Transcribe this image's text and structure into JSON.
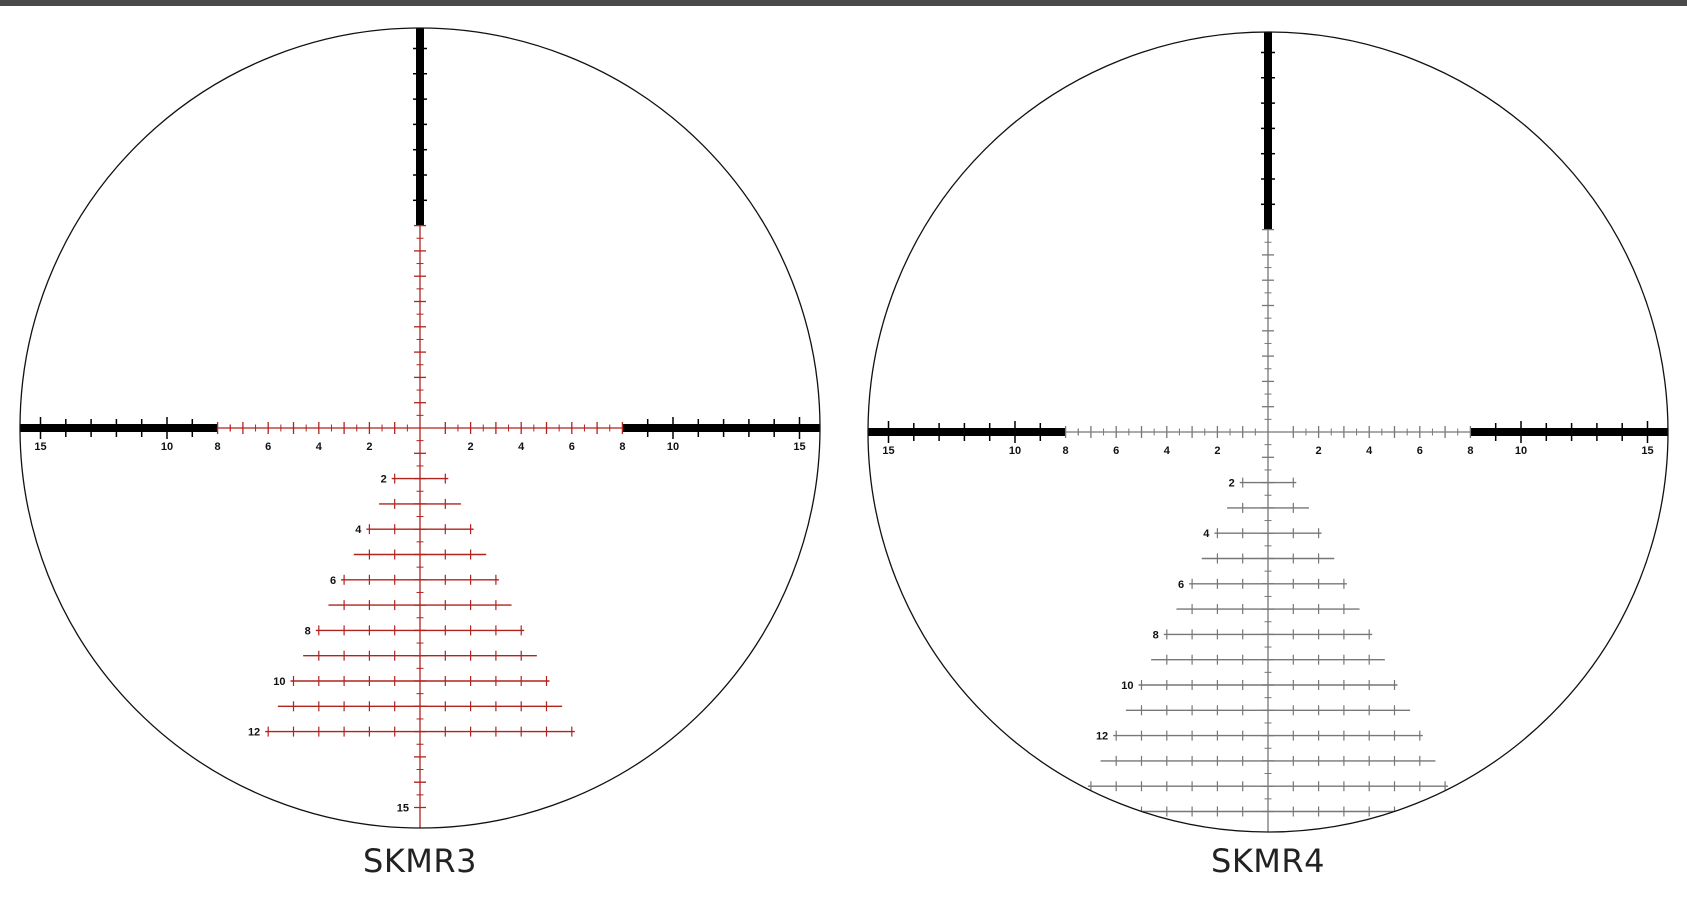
{
  "colors": {
    "background": "#ffffff",
    "top_bar": "#4a4a4a",
    "outline": "#111111",
    "thick_post": "#000000",
    "skmr3_fine": "#b0231f",
    "skmr4_fine": "#777777",
    "label": "#111111"
  },
  "reticles": [
    {
      "id": "skmr3",
      "name": "SKMR3",
      "fine_color": "skmr3_fine",
      "horizontal_labels": [
        "15",
        "10",
        "8",
        "6",
        "4",
        "2",
        "2",
        "4",
        "6",
        "8",
        "10",
        "15"
      ],
      "horizontal_label_values": [
        -15,
        -10,
        -8,
        -6,
        -4,
        -2,
        2,
        4,
        6,
        8,
        10,
        15
      ],
      "vertical_labels": [
        "2",
        "4",
        "6",
        "8",
        "10",
        "12",
        "15"
      ],
      "vertical_label_values": [
        2,
        4,
        6,
        8,
        10,
        12,
        15
      ],
      "tree_rows": [
        2,
        3,
        4,
        5,
        6,
        7,
        8,
        9,
        10,
        11,
        12
      ]
    },
    {
      "id": "skmr4",
      "name": "SKMR4",
      "fine_color": "skmr4_fine",
      "horizontal_labels": [
        "15",
        "10",
        "8",
        "6",
        "4",
        "2",
        "2",
        "4",
        "6",
        "8",
        "10",
        "15"
      ],
      "horizontal_label_values": [
        -15,
        -10,
        -8,
        -6,
        -4,
        -2,
        2,
        4,
        6,
        8,
        10,
        15
      ],
      "vertical_labels": [
        "2",
        "4",
        "6",
        "8",
        "10",
        "12"
      ],
      "vertical_label_values": [
        2,
        4,
        6,
        8,
        10,
        12
      ],
      "tree_rows": [
        2,
        3,
        4,
        5,
        6,
        7,
        8,
        9,
        10,
        11,
        12,
        13,
        14,
        15
      ]
    }
  ]
}
